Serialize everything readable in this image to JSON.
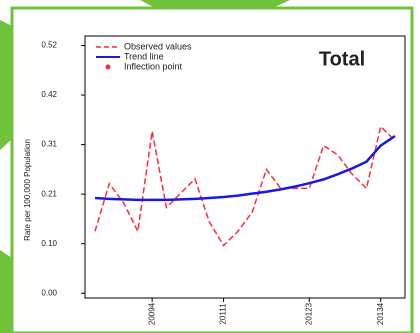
{
  "chart_data": {
    "type": "line",
    "annotation": "Total",
    "y_label": "Rate per 100,000 Population",
    "categories": [
      null,
      null,
      null,
      null,
      "20094",
      null,
      null,
      null,
      null,
      "20111",
      null,
      null,
      null,
      null,
      null,
      "20123",
      null,
      null,
      null,
      null,
      "20134",
      null
    ],
    "series": [
      {
        "name": "Observed values",
        "color": "#ff2a3a",
        "style": "dashed",
        "values": [
          0.13,
          0.23,
          0.19,
          0.13,
          0.34,
          0.18,
          0.21,
          0.24,
          0.15,
          0.1,
          0.13,
          0.17,
          0.26,
          0.22,
          0.22,
          0.22,
          0.31,
          0.29,
          0.25,
          0.22,
          0.35,
          0.32
        ]
      },
      {
        "name": "Trend line",
        "color": "#1a1adf",
        "style": "solid",
        "values": [
          0.2,
          0.198,
          0.197,
          0.196,
          0.196,
          0.196,
          0.197,
          0.198,
          0.2,
          0.202,
          0.205,
          0.209,
          0.213,
          0.218,
          0.224,
          0.231,
          0.239,
          0.25,
          0.262,
          0.276,
          0.31,
          0.33
        ]
      },
      {
        "name": "Inflection point",
        "color": "#ff2a3a",
        "style": "dot",
        "values": [
          null,
          null,
          null,
          null,
          null,
          null,
          null,
          null,
          null,
          null,
          null,
          null,
          null,
          null,
          null,
          null,
          null,
          null,
          null,
          null,
          null,
          null
        ]
      }
    ],
    "ylim": [
      -0.01,
      0.54
    ],
    "yticks": [
      {
        "value": 0,
        "label": "0.00"
      },
      {
        "value": 0.104,
        "label": "0.10"
      },
      {
        "value": 0.208,
        "label": "0.21"
      },
      {
        "value": 0.312,
        "label": "0.31"
      },
      {
        "value": 0.416,
        "label": "0.42"
      },
      0.52
    ],
    "legend": "upper left"
  }
}
